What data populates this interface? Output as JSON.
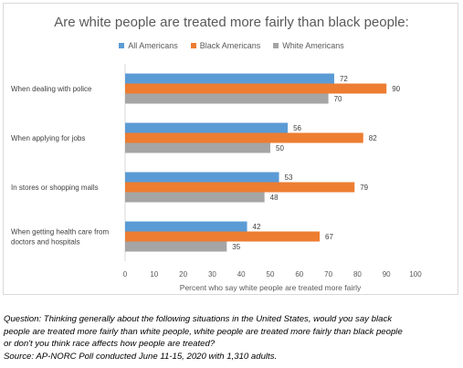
{
  "chart_data": {
    "type": "bar",
    "orientation": "horizontal",
    "title": "Are white people are treated more fairly than black people:",
    "xlabel": "Percent who say white people are treated more fairly",
    "ylabel": "",
    "xlim": [
      0,
      100
    ],
    "xticks": [
      0,
      10,
      20,
      30,
      40,
      50,
      60,
      70,
      80,
      90,
      100
    ],
    "legend_position": "top",
    "grid": "vertical",
    "categories": [
      [
        "When dealing with police"
      ],
      [
        "When applying for jobs"
      ],
      [
        "In stores or shopping malls"
      ],
      [
        "When getting health care from",
        "doctors and hospitals"
      ]
    ],
    "series": [
      {
        "name": "All Americans",
        "color": "#5b9bd5",
        "values": [
          72,
          56,
          53,
          42
        ]
      },
      {
        "name": "Black Americans",
        "color": "#ed7d31",
        "values": [
          90,
          82,
          79,
          67
        ]
      },
      {
        "name": "White Americans",
        "color": "#a5a5a5",
        "values": [
          70,
          50,
          48,
          35
        ]
      }
    ]
  },
  "footnote": {
    "lines": [
      "Question: Thinking generally about the following situations in the United States, would you say black",
      "people are treated more fairly than white people, white people are treated more fairly than black people",
      "or don't you think race affects how people are treated?",
      "Source: AP-NORC Poll conducted June 11-15, 2020 with 1,310 adults."
    ]
  }
}
